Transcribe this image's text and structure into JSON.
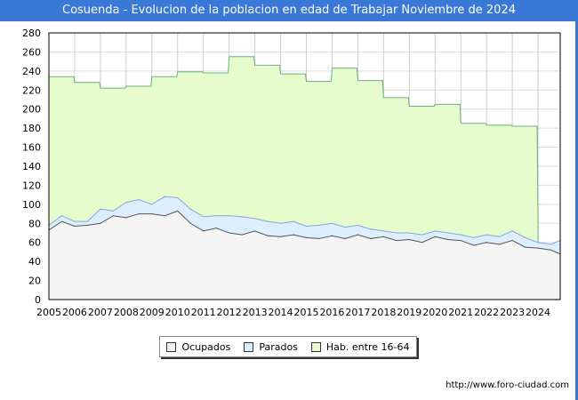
{
  "chart_data": {
    "type": "area",
    "title": "Cosuenda - Evolucion de la poblacion en edad de Trabajar Noviembre de 2024",
    "xlabel": "",
    "ylabel": "",
    "xlim": [
      2005,
      2024.9
    ],
    "ylim": [
      0,
      280
    ],
    "yticks": [
      0,
      20,
      40,
      60,
      80,
      100,
      120,
      140,
      160,
      180,
      200,
      220,
      240,
      260,
      280
    ],
    "xticks": [
      2005,
      2006,
      2007,
      2008,
      2009,
      2010,
      2011,
      2012,
      2013,
      2014,
      2015,
      2016,
      2017,
      2018,
      2019,
      2020,
      2021,
      2022,
      2023,
      2024
    ],
    "legend_position": "bottom",
    "series": [
      {
        "name": "Hab. entre 16-64",
        "color": "#e6fccc",
        "line": "#6aaf7f",
        "x": [
          2005,
          2006,
          2007,
          2008,
          2009,
          2010,
          2011,
          2012,
          2013,
          2014,
          2015,
          2016,
          2017,
          2018,
          2019,
          2020,
          2021,
          2022,
          2023,
          2024
        ],
        "values": [
          234,
          228,
          222,
          224,
          234,
          239,
          238,
          255,
          246,
          237,
          229,
          243,
          230,
          212,
          203,
          205,
          185,
          183,
          182,
          80
        ]
      },
      {
        "name": "Parados",
        "color": "#ddeeff",
        "line": "#7fa8e0",
        "x": [
          2005,
          2005.5,
          2006,
          2006.5,
          2007,
          2007.5,
          2008,
          2008.5,
          2009,
          2009.5,
          2010,
          2010.5,
          2011,
          2011.5,
          2012,
          2012.5,
          2013,
          2013.5,
          2014,
          2014.5,
          2015,
          2015.5,
          2016,
          2016.5,
          2017,
          2017.5,
          2018,
          2018.5,
          2019,
          2019.5,
          2020,
          2020.5,
          2021,
          2021.5,
          2022,
          2022.5,
          2023,
          2023.5,
          2024,
          2024.5,
          2024.85
        ],
        "values": [
          78,
          88,
          82,
          82,
          95,
          93,
          102,
          105,
          100,
          108,
          107,
          95,
          87,
          88,
          88,
          87,
          85,
          82,
          80,
          82,
          77,
          78,
          80,
          76,
          78,
          74,
          72,
          70,
          70,
          68,
          72,
          70,
          68,
          65,
          68,
          66,
          72,
          65,
          60,
          58,
          62
        ]
      },
      {
        "name": "Ocupados",
        "color": "#f4f4f4",
        "line": "#555555",
        "x": [
          2005,
          2005.5,
          2006,
          2006.5,
          2007,
          2007.5,
          2008,
          2008.5,
          2009,
          2009.5,
          2010,
          2010.5,
          2011,
          2011.5,
          2012,
          2012.5,
          2013,
          2013.5,
          2014,
          2014.5,
          2015,
          2015.5,
          2016,
          2016.5,
          2017,
          2017.5,
          2018,
          2018.5,
          2019,
          2019.5,
          2020,
          2020.5,
          2021,
          2021.5,
          2022,
          2022.5,
          2023,
          2023.5,
          2024,
          2024.5,
          2024.85
        ],
        "values": [
          73,
          82,
          77,
          78,
          80,
          88,
          86,
          90,
          90,
          88,
          93,
          80,
          72,
          75,
          70,
          68,
          72,
          67,
          66,
          68,
          65,
          64,
          67,
          64,
          68,
          64,
          66,
          62,
          63,
          60,
          66,
          63,
          62,
          57,
          60,
          58,
          62,
          55,
          54,
          52,
          48
        ]
      }
    ]
  },
  "legend": {
    "ocupados": "Ocupados",
    "parados": "Parados",
    "hab": "Hab. entre 16-64"
  },
  "footer": "http://www.foro-ciudad.com"
}
